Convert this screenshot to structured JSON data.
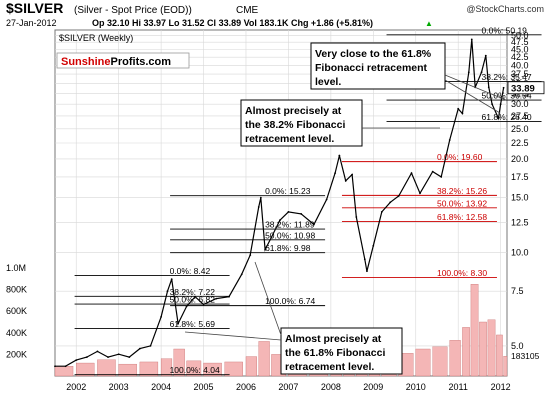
{
  "header": {
    "symbol": "$SILVER",
    "name": "(Silver - Spot Price (EOD))",
    "exchange": "CME",
    "source": "@StockCharts.com",
    "date": "27-Jan-2012",
    "ohlc": "Op 32.10   Hi 33.97   Lo 31.52   Cl 33.89   Vol 183.1K   Chg +1.86 (+5.81%)",
    "change_arrow": "▲",
    "series_label": "$SILVER (Weekly)"
  },
  "logo": {
    "part1": "Sunshine",
    "part2": "Profits.com"
  },
  "colors": {
    "price": "#000000",
    "fib_line": "#000000",
    "fib_line_red": "#cc0000",
    "volume": "#f4b6b6",
    "volume_outline": "#b55",
    "grid": "#d8d8d8",
    "last_value_bg": "#ffffff",
    "logo_red": "#d10000"
  },
  "annotations": [
    {
      "text": [
        "Very close to the 61.8%",
        "Fibonacci retracement",
        "level."
      ]
    },
    {
      "text": [
        "Almost precisely at",
        "the 38.2% Fibonacci",
        "retracement level."
      ]
    },
    {
      "text": [
        "Almost precisely at",
        "the 61.8% Fibonacci",
        "retracement level."
      ]
    }
  ],
  "chart_data": {
    "type": "line",
    "title": "$SILVER (Weekly)",
    "x_ticks": [
      "2002",
      "2003",
      "2004",
      "2005",
      "2006",
      "2007",
      "2008",
      "2009",
      "2010",
      "2011",
      "2012"
    ],
    "y_ticks": [
      5.0,
      7.5,
      10.0,
      12.5,
      15.0,
      17.5,
      20.0,
      22.5,
      25.0,
      27.5,
      30.0,
      32.5,
      35.0,
      37.5,
      40.0,
      42.5,
      45.0,
      47.5,
      50.0
    ],
    "y_tick_labels": [
      "5.0",
      "7.5",
      "10.0",
      "12.5",
      "15.0",
      "17.5",
      "20.0",
      "22.5",
      "25.0",
      "27.5",
      "30.0",
      "32.5",
      "35.0",
      "37.5",
      "40.0",
      "42.5",
      "45.0",
      "47.5",
      "50.0"
    ],
    "y_scale": "log",
    "ylim": [
      4.0,
      52.0
    ],
    "last_value": "33.89",
    "grid": true,
    "series": [
      {
        "points": [
          [
            2001.5,
            4.3
          ],
          [
            2001.75,
            4.3
          ],
          [
            2002.0,
            4.5
          ],
          [
            2002.25,
            4.6
          ],
          [
            2002.5,
            4.8
          ],
          [
            2002.75,
            4.6
          ],
          [
            2003.0,
            4.7
          ],
          [
            2003.25,
            4.6
          ],
          [
            2003.5,
            4.9
          ],
          [
            2003.75,
            5.0
          ],
          [
            2004.0,
            6.2
          ],
          [
            2004.15,
            7.5
          ],
          [
            2004.25,
            8.2
          ],
          [
            2004.4,
            5.9
          ],
          [
            2004.6,
            6.7
          ],
          [
            2004.8,
            7.2
          ],
          [
            2005.0,
            6.8
          ],
          [
            2005.3,
            7.1
          ],
          [
            2005.6,
            7.2
          ],
          [
            2005.9,
            8.5
          ],
          [
            2006.1,
            9.8
          ],
          [
            2006.3,
            14.0
          ],
          [
            2006.35,
            15.0
          ],
          [
            2006.45,
            10.2
          ],
          [
            2006.6,
            11.2
          ],
          [
            2006.8,
            12.7
          ],
          [
            2007.0,
            13.5
          ],
          [
            2007.3,
            13.3
          ],
          [
            2007.6,
            12.3
          ],
          [
            2007.9,
            14.8
          ],
          [
            2008.1,
            18.0
          ],
          [
            2008.2,
            20.5
          ],
          [
            2008.35,
            17.0
          ],
          [
            2008.5,
            17.8
          ],
          [
            2008.6,
            13.0
          ],
          [
            2008.8,
            9.5
          ],
          [
            2008.85,
            8.7
          ],
          [
            2009.0,
            10.5
          ],
          [
            2009.2,
            13.5
          ],
          [
            2009.4,
            14.5
          ],
          [
            2009.6,
            15.2
          ],
          [
            2009.9,
            18.0
          ],
          [
            2010.1,
            15.5
          ],
          [
            2010.4,
            18.2
          ],
          [
            2010.6,
            17.5
          ],
          [
            2010.8,
            23.0
          ],
          [
            2011.0,
            29.0
          ],
          [
            2011.1,
            28.0
          ],
          [
            2011.25,
            38.0
          ],
          [
            2011.32,
            48.5
          ],
          [
            2011.4,
            34.0
          ],
          [
            2011.55,
            38.0
          ],
          [
            2011.65,
            43.0
          ],
          [
            2011.72,
            34.0
          ],
          [
            2011.8,
            30.0
          ],
          [
            2011.95,
            27.0
          ],
          [
            2012.0,
            30.0
          ],
          [
            2012.07,
            33.89
          ]
        ]
      }
    ],
    "volume": {
      "axis_labels": [
        "200K",
        "400K",
        "600K",
        "800K",
        "1.0M"
      ],
      "axis_values": [
        200000,
        400000,
        600000,
        800000,
        1000000
      ],
      "last_label": "183105",
      "bars": [
        [
          2001.5,
          90000
        ],
        [
          2002.0,
          120000
        ],
        [
          2002.5,
          150000
        ],
        [
          2003.0,
          110000
        ],
        [
          2003.5,
          130000
        ],
        [
          2004.0,
          160000
        ],
        [
          2004.3,
          250000
        ],
        [
          2004.6,
          140000
        ],
        [
          2005.0,
          120000
        ],
        [
          2005.5,
          130000
        ],
        [
          2006.0,
          180000
        ],
        [
          2006.3,
          320000
        ],
        [
          2006.6,
          200000
        ],
        [
          2007.0,
          170000
        ],
        [
          2007.5,
          160000
        ],
        [
          2008.0,
          210000
        ],
        [
          2008.3,
          280000
        ],
        [
          2008.6,
          220000
        ],
        [
          2008.9,
          180000
        ],
        [
          2009.2,
          230000
        ],
        [
          2009.6,
          210000
        ],
        [
          2010.0,
          250000
        ],
        [
          2010.4,
          270000
        ],
        [
          2010.8,
          330000
        ],
        [
          2011.1,
          450000
        ],
        [
          2011.3,
          850000
        ],
        [
          2011.5,
          500000
        ],
        [
          2011.7,
          520000
        ],
        [
          2011.9,
          380000
        ],
        [
          2012.07,
          183105
        ]
      ]
    },
    "fib_sets": [
      {
        "color_key": "fib_line",
        "label_x": 2004.2,
        "levels": [
          {
            "label": "0.0%: 8.42",
            "value": 8.42
          },
          {
            "label": "38.2%: 7.22",
            "value": 7.22
          },
          {
            "label": "50.0%: 6.82",
            "value": 6.82
          },
          {
            "label": "61.8%: 5.69",
            "value": 5.69
          },
          {
            "label": "100.0%: 4.04",
            "value": 4.04
          }
        ]
      },
      {
        "color_key": "fib_line",
        "label_x": 2006.45,
        "levels": [
          {
            "label": "0.0%: 15.23",
            "value": 15.23
          },
          {
            "label": "38.2%: 11.89",
            "value": 11.89
          },
          {
            "label": "50.0%: 10.98",
            "value": 10.98
          },
          {
            "label": "61.8%: 9.98",
            "value": 9.98
          },
          {
            "label": "100.0%: 6.74",
            "value": 6.74
          }
        ]
      },
      {
        "color_key": "fib_line_red",
        "label_x": 2010.5,
        "levels": [
          {
            "label": "0.0%: 19.60",
            "value": 19.6
          },
          {
            "label": "38.2%: 15.26",
            "value": 15.26
          },
          {
            "label": "50.0%: 13.92",
            "value": 13.92
          },
          {
            "label": "61.8%: 12.58",
            "value": 12.58
          },
          {
            "label": "100.0%: 8.30",
            "value": 8.3
          }
        ]
      },
      {
        "color_key": "fib_line",
        "label_x": 2011.55,
        "levels": [
          {
            "label": "0.0%: 50.19",
            "value": 50.19
          },
          {
            "label": "38.2%: 35.47",
            "value": 35.47
          },
          {
            "label": "50.0%: 30.94",
            "value": 30.94
          },
          {
            "label": "61.8%: 26.40",
            "value": 26.4
          }
        ]
      }
    ]
  }
}
